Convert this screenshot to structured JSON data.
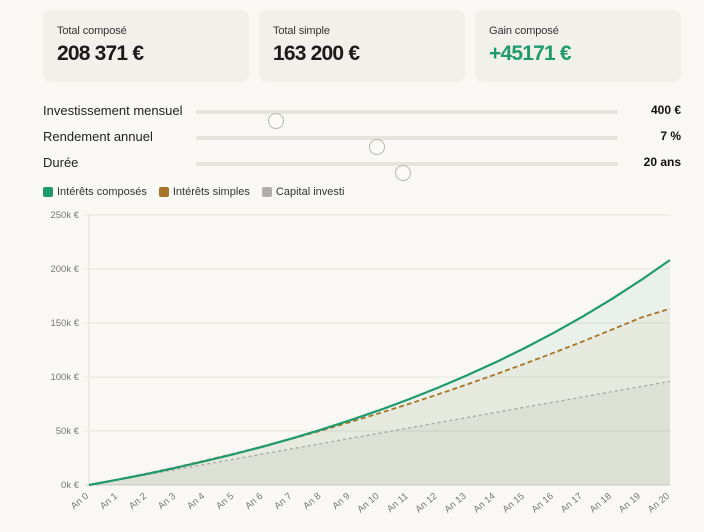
{
  "stats": [
    {
      "label": "Total composé",
      "value": "208 371 €"
    },
    {
      "label": "Total simple",
      "value": "163 200 €"
    },
    {
      "label": "Gain composé",
      "value": "+45171 €"
    }
  ],
  "controls": [
    {
      "label": "Investissement mensuel",
      "value": "400 €",
      "thumb_pct": 19
    },
    {
      "label": "Rendement annuel",
      "value": "7 %",
      "thumb_pct": 43
    },
    {
      "label": "Durée",
      "value": "20 ans",
      "thumb_pct": 49
    }
  ],
  "colors": {
    "compound": "#1f9a6e",
    "simple": "#a87527",
    "capital": "#aaaaaa",
    "background": "#f9f8f4",
    "card": "#f2f0eb"
  },
  "chart_data": {
    "type": "line",
    "title": "",
    "xlabel": "",
    "ylabel": "",
    "ylim": [
      0,
      250000
    ],
    "yticks": [
      "0k €",
      "50k €",
      "100k €",
      "150k €",
      "200k €",
      "250k €"
    ],
    "grid": true,
    "legend_position": "top-left",
    "categories": [
      "An 0",
      "An 1",
      "An 2",
      "An 3",
      "An 4",
      "An 5",
      "An 6",
      "An 7",
      "An 8",
      "An 9",
      "An 10",
      "An 11",
      "An 12",
      "An 13",
      "An 14",
      "An 15",
      "An 16",
      "An 17",
      "An 18",
      "An 19",
      "An 20"
    ],
    "series": [
      {
        "name": "Intérêts composés",
        "style": "solid",
        "fill": true,
        "values": [
          0,
          4959,
          10277,
          15979,
          22093,
          28649,
          35679,
          43217,
          51300,
          59967,
          69260,
          79226,
          89912,
          101370,
          113656,
          126831,
          140957,
          156105,
          172347,
          189764,
          208371
        ]
      },
      {
        "name": "Intérêts simples",
        "style": "dashed",
        "fill": true,
        "values": [
          0,
          5136,
          10608,
          16416,
          22560,
          29040,
          35856,
          43008,
          50496,
          58320,
          66480,
          74976,
          83808,
          92976,
          102480,
          112320,
          122496,
          133008,
          143856,
          155040,
          163200
        ]
      },
      {
        "name": "Capital investi",
        "style": "dotted",
        "fill": true,
        "values": [
          0,
          4800,
          9600,
          14400,
          19200,
          24000,
          28800,
          33600,
          38400,
          43200,
          48000,
          52800,
          57600,
          62400,
          67200,
          72000,
          76800,
          81600,
          86400,
          91200,
          96000
        ]
      }
    ]
  }
}
